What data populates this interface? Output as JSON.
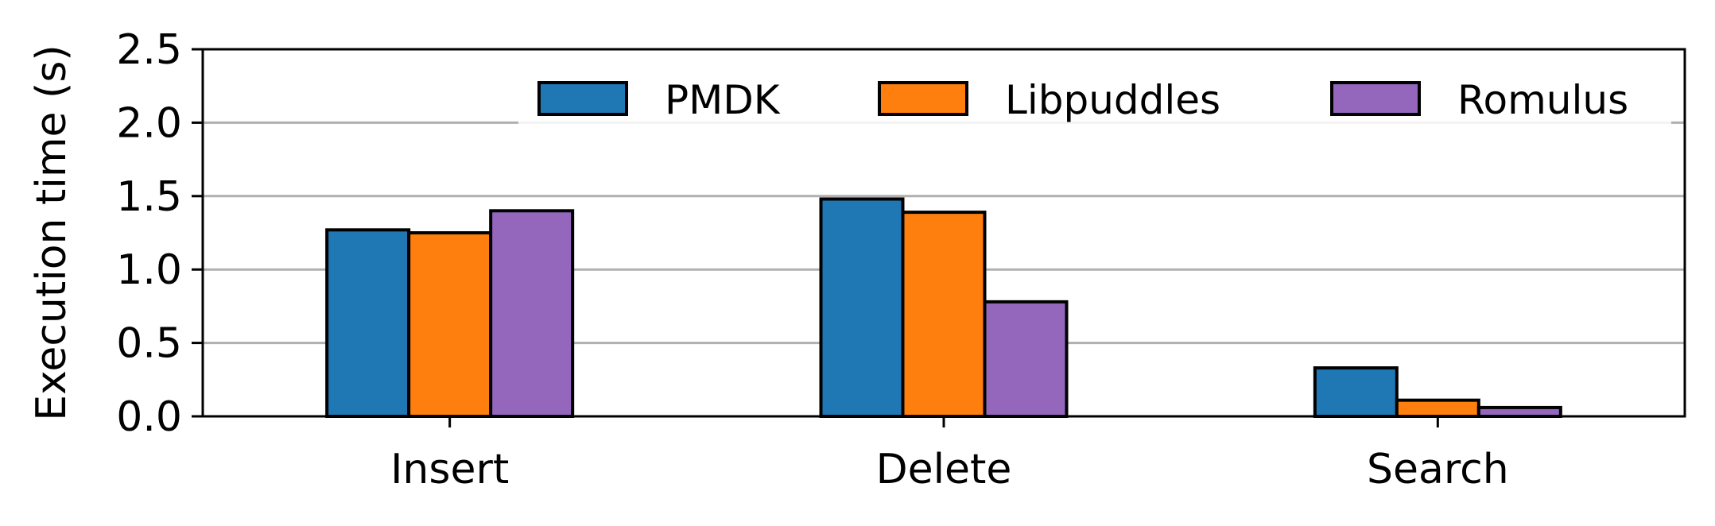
{
  "chart_data": {
    "type": "bar",
    "categories": [
      "Insert",
      "Delete",
      "Search"
    ],
    "series": [
      {
        "name": "PMDK",
        "values": [
          1.27,
          1.48,
          0.33
        ],
        "color": "#1f77b4"
      },
      {
        "name": "Libpuddles",
        "values": [
          1.25,
          1.39,
          0.11
        ],
        "color": "#ff7f0e"
      },
      {
        "name": "Romulus",
        "values": [
          1.4,
          0.78,
          0.06
        ],
        "color": "#9467bd"
      }
    ],
    "xlabel": "",
    "ylabel": "Execution time (s)",
    "ylim": [
      0,
      2.5
    ],
    "yticks": [
      "0.0",
      "0.5",
      "1.0",
      "1.5",
      "2.0",
      "2.5"
    ],
    "grid": "horizontal",
    "legend": "top-right"
  }
}
